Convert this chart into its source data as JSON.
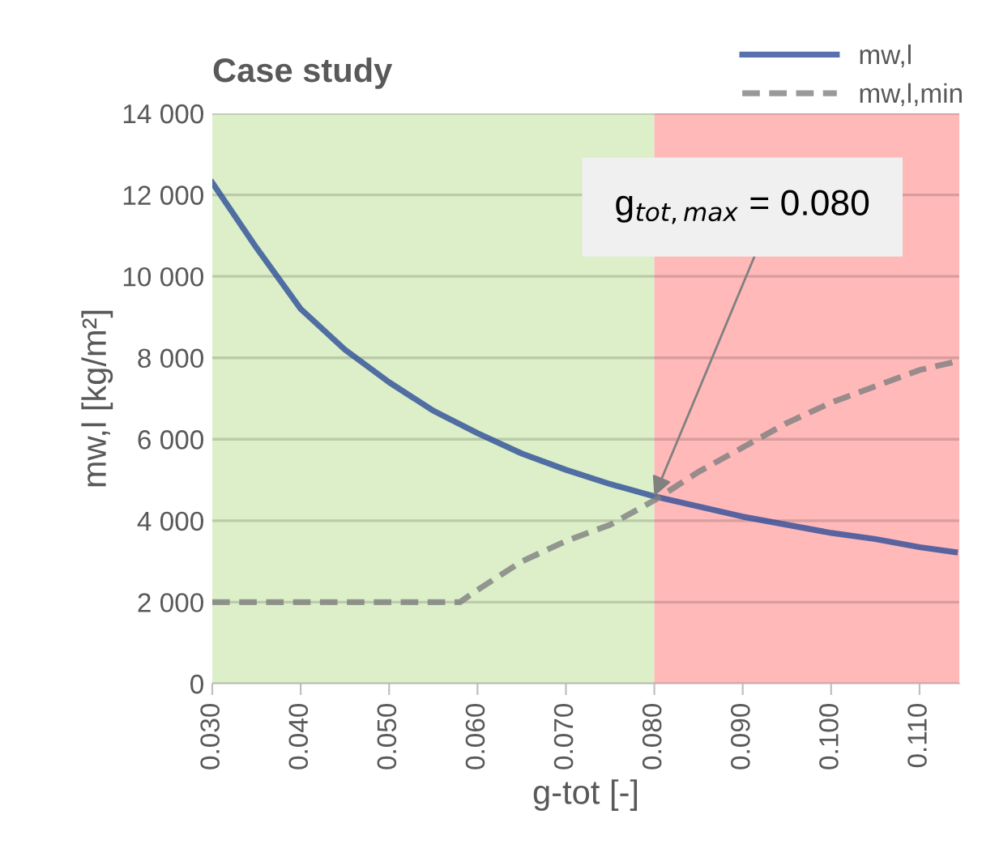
{
  "chart_data": {
    "type": "line",
    "title": "Case study",
    "xlabel": "g-tot [-]",
    "ylabel": "mw,l [kg/m²]",
    "x": [
      0.03,
      0.035,
      0.04,
      0.045,
      0.05,
      0.055,
      0.06,
      0.065,
      0.07,
      0.075,
      0.08,
      0.085,
      0.09,
      0.095,
      0.1,
      0.105,
      0.11,
      0.114
    ],
    "series": [
      {
        "name": "mw,l",
        "color": "#2e4e9a",
        "line_style": "solid",
        "values": [
          12300,
          10700,
          9200,
          8200,
          7400,
          6700,
          6150,
          5650,
          5250,
          4900,
          4600,
          4350,
          4100,
          3900,
          3700,
          3550,
          3350,
          3230
        ]
      },
      {
        "name": "mw,l,min",
        "color": "#808080",
        "line_style": "dashed",
        "x": [
          0.03,
          0.058,
          0.06,
          0.065,
          0.07,
          0.075,
          0.08,
          0.085,
          0.09,
          0.095,
          0.1,
          0.105,
          0.11,
          0.114
        ],
        "values": [
          2000,
          2000,
          2300,
          3000,
          3500,
          3900,
          4500,
          5200,
          5800,
          6400,
          6900,
          7300,
          7700,
          7900
        ]
      }
    ],
    "xlim": [
      0.03,
      0.1145
    ],
    "xticks": [
      {
        "value": 0.03,
        "label": "0.030"
      },
      {
        "value": 0.04,
        "label": "0.040"
      },
      {
        "value": 0.05,
        "label": "0.050"
      },
      {
        "value": 0.06,
        "label": "0.060"
      },
      {
        "value": 0.07,
        "label": "0.070"
      },
      {
        "value": 0.08,
        "label": "0.080"
      },
      {
        "value": 0.09,
        "label": "0.090"
      },
      {
        "value": 0.1,
        "label": "0.100"
      },
      {
        "value": 0.11,
        "label": "0.110"
      }
    ],
    "ylim": [
      0,
      14000
    ],
    "yticks": [
      0,
      {
        "value": 2000,
        "label": "2 000"
      },
      {
        "value": 4000,
        "label": "4 000"
      },
      {
        "value": 6000,
        "label": "6 000"
      },
      {
        "value": 8000,
        "label": "8 000"
      },
      {
        "value": 10000,
        "label": "10 000"
      },
      {
        "value": 12000,
        "label": "12 000"
      },
      {
        "value": 14000,
        "label": "14 000"
      }
    ],
    "bands": [
      {
        "axis": "x",
        "from": 0.03,
        "to": 0.08,
        "color": "#dcefc8"
      },
      {
        "axis": "x",
        "from": 0.08,
        "to": 0.1145,
        "color": "#ffb9b9"
      }
    ],
    "annotations": [
      {
        "text": "g$_{tot,max}$ = 0.080",
        "x": 0.08,
        "y": 4600
      }
    ],
    "grid": "y",
    "legend": "top right",
    "marker": "none"
  }
}
